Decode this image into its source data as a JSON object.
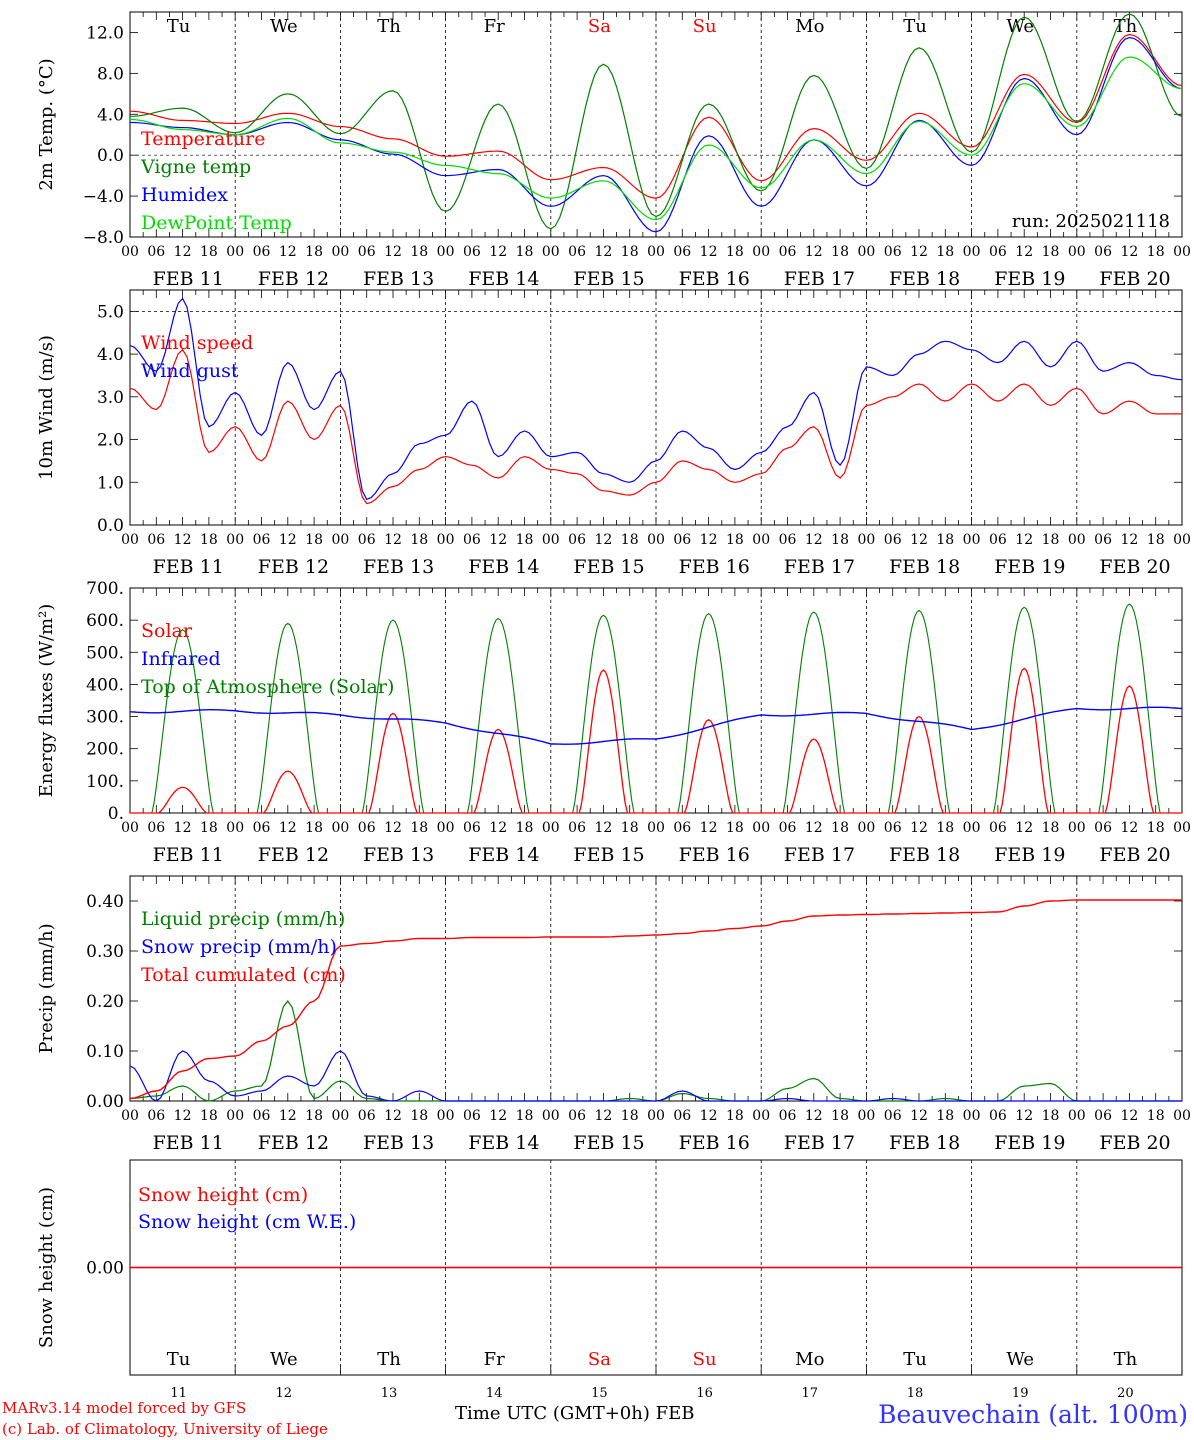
{
  "footer": {
    "model_line": "MARv3.14 model forced by GFS",
    "credit_line": "(c) Lab. of Climatology, University of Liege",
    "time_axis_label": "Time UTC (GMT+0h)",
    "month_label": "FEB",
    "station": "Beauvechain (alt. 100m)"
  },
  "run_label": "run: 2025021118",
  "days": {
    "weekday_labels": [
      "Tu",
      "We",
      "Th",
      "Fr",
      "Sa",
      "Su",
      "Mo",
      "Tu",
      "We",
      "Th"
    ],
    "weekend_flags": [
      false,
      false,
      false,
      false,
      true,
      true,
      false,
      false,
      false,
      false
    ],
    "date_labels": [
      "FEB 11",
      "FEB 12",
      "FEB 13",
      "FEB 14",
      "FEB 15",
      "FEB 16",
      "FEB 17",
      "FEB 18",
      "FEB 19",
      "FEB 20"
    ],
    "day_numbers": [
      "11",
      "12",
      "13",
      "14",
      "15",
      "16",
      "17",
      "18",
      "19",
      "20"
    ],
    "hour_labels": [
      "00",
      "06",
      "12",
      "18"
    ],
    "final_hour_label": "00"
  },
  "colors": {
    "red": "#ff0000",
    "green": "#008000",
    "blue": "#0000ff",
    "lightgreen": "#00dd00",
    "weekend": "#ff0000"
  },
  "chart_data": [
    {
      "type": "line",
      "ylabel": "2m Temp. (°C)",
      "ylim": [
        -8,
        14
      ],
      "yticks": [
        -8,
        -4,
        0,
        4,
        8,
        12
      ],
      "ytick_labels": [
        "−8.0",
        "−4.0",
        "0.0",
        "4.0",
        "8.0",
        "12.0"
      ],
      "reference_line": 0,
      "x_unit": "hours since FEB 11 00 UTC",
      "x": [
        0,
        12,
        24,
        36,
        48,
        60,
        72,
        84,
        96,
        108,
        120,
        132,
        144,
        156,
        168,
        180,
        192,
        204,
        216,
        228,
        240
      ],
      "series": [
        {
          "name": "Temperature",
          "color": "red",
          "values": [
            4.3,
            3.4,
            3.1,
            4.1,
            2.8,
            1.6,
            -0.1,
            0.4,
            -2.4,
            -1.2,
            -4.2,
            3.7,
            -2.5,
            2.6,
            -0.5,
            4.1,
            0.8,
            7.9,
            3.2,
            11.8,
            6.8
          ]
        },
        {
          "name": "Vigne temp",
          "color": "green",
          "values": [
            3.8,
            4.6,
            2.2,
            6.0,
            2.1,
            6.3,
            -5.5,
            5.0,
            -7.2,
            8.9,
            -6.0,
            5.0,
            -3.5,
            7.8,
            -1.3,
            10.5,
            0.3,
            13.5,
            3.3,
            13.8,
            3.8
          ]
        },
        {
          "name": "Humidex",
          "color": "blue",
          "values": [
            3.2,
            2.7,
            2.0,
            3.2,
            1.5,
            0.1,
            -2.0,
            -1.4,
            -5.0,
            -2.0,
            -7.5,
            1.9,
            -5.0,
            1.5,
            -3.0,
            3.4,
            -1.0,
            7.5,
            2.0,
            11.5,
            6.5
          ]
        },
        {
          "name": "DewPoint Temp",
          "color": "lightgreen",
          "values": [
            3.5,
            2.5,
            2.0,
            3.6,
            1.2,
            0.3,
            -1.0,
            -1.8,
            -4.2,
            -2.5,
            -6.3,
            1.0,
            -3.2,
            1.5,
            -1.8,
            3.3,
            0.0,
            7.0,
            2.8,
            9.6,
            6.5
          ]
        }
      ]
    },
    {
      "type": "line",
      "ylabel": "10m Wind (m/s)",
      "ylim": [
        0,
        5.5
      ],
      "yticks": [
        0,
        1,
        2,
        3,
        4,
        5
      ],
      "ytick_labels": [
        "0.0",
        "1.0",
        "2.0",
        "3.0",
        "4.0",
        "5.0"
      ],
      "reference_line": 5,
      "x_unit": "hours since FEB 11 00 UTC",
      "x": [
        0,
        6,
        12,
        18,
        24,
        30,
        36,
        42,
        48,
        54,
        60,
        66,
        72,
        78,
        84,
        90,
        96,
        102,
        108,
        114,
        120,
        126,
        132,
        138,
        144,
        150,
        156,
        162,
        168,
        174,
        180,
        186,
        192,
        198,
        204,
        210,
        216,
        222,
        228,
        234,
        240
      ],
      "series": [
        {
          "name": "Wind speed",
          "color": "red",
          "values": [
            3.2,
            2.7,
            4.1,
            1.7,
            2.3,
            1.5,
            2.9,
            2.0,
            2.8,
            0.5,
            0.9,
            1.3,
            1.6,
            1.4,
            1.1,
            1.6,
            1.3,
            1.2,
            0.8,
            0.7,
            1.0,
            1.5,
            1.3,
            1.0,
            1.2,
            1.8,
            2.3,
            1.1,
            2.8,
            3.0,
            3.3,
            2.9,
            3.3,
            2.9,
            3.3,
            2.8,
            3.2,
            2.6,
            2.9,
            2.6,
            2.6
          ]
        },
        {
          "name": "Wind gust",
          "color": "blue",
          "values": [
            4.2,
            3.6,
            5.3,
            2.3,
            3.1,
            2.1,
            3.8,
            2.7,
            3.6,
            0.6,
            1.2,
            1.9,
            2.1,
            2.9,
            1.6,
            2.2,
            1.6,
            1.7,
            1.2,
            1.0,
            1.5,
            2.2,
            1.8,
            1.3,
            1.7,
            2.3,
            3.1,
            1.4,
            3.7,
            3.5,
            4.0,
            4.3,
            4.1,
            3.8,
            4.3,
            3.7,
            4.3,
            3.6,
            3.8,
            3.5,
            3.4
          ]
        }
      ]
    },
    {
      "type": "line",
      "ylabel": "Energy fluxes (W/m²)",
      "ylim": [
        0,
        700
      ],
      "yticks": [
        0,
        100,
        200,
        300,
        400,
        500,
        600,
        700
      ],
      "ytick_labels": [
        "0.",
        "100.",
        "200.",
        "300.",
        "400.",
        "500.",
        "600.",
        "700."
      ],
      "x_unit": "hours since FEB 11 00 UTC",
      "daily_peak_hour": 12,
      "solar_daily_peaks": [
        80,
        130,
        310,
        260,
        445,
        290,
        230,
        300,
        450,
        395
      ],
      "infrared_daily_levels": [
        315,
        318,
        305,
        280,
        215,
        230,
        305,
        310,
        260,
        325
      ],
      "toa_solar_daily_peaks": [
        570,
        590,
        600,
        605,
        615,
        620,
        625,
        630,
        640,
        650
      ],
      "series": [
        {
          "name": "Solar",
          "color": "red"
        },
        {
          "name": "Infrared",
          "color": "blue"
        },
        {
          "name": "Top of Atmosphere (Solar)",
          "color": "green"
        }
      ]
    },
    {
      "type": "line",
      "ylabel": "Precip (mm/h)",
      "ylim": [
        0,
        0.45
      ],
      "yticks": [
        0,
        0.1,
        0.2,
        0.3,
        0.4
      ],
      "ytick_labels": [
        "0.00",
        "0.10",
        "0.20",
        "0.30",
        "0.40"
      ],
      "x_unit": "hours since FEB 11 00 UTC",
      "x": [
        0,
        6,
        12,
        18,
        24,
        30,
        36,
        42,
        48,
        54,
        60,
        66,
        72,
        78,
        84,
        90,
        96,
        102,
        108,
        114,
        120,
        126,
        132,
        138,
        144,
        150,
        156,
        162,
        168,
        174,
        180,
        186,
        192,
        198,
        204,
        210,
        216,
        222,
        228,
        234,
        240
      ],
      "series": [
        {
          "name": "Liquid precip (mm/h)",
          "color": "green",
          "values": [
            0.005,
            0.01,
            0.03,
            0.0,
            0.02,
            0.03,
            0.2,
            0.005,
            0.04,
            0.005,
            0.0,
            0.0,
            0.0,
            0.0,
            0.0,
            0.0,
            0.0,
            0.0,
            0.0,
            0.005,
            0.0,
            0.015,
            0.005,
            0.0,
            0.0,
            0.025,
            0.045,
            0.005,
            0.0,
            0.0,
            0.0,
            0.005,
            0.0,
            0.0,
            0.03,
            0.035,
            0.0,
            0.0,
            0.0,
            0.0,
            0.0
          ]
        },
        {
          "name": "Snow precip (mm/h)",
          "color": "blue",
          "values": [
            0.07,
            0.0,
            0.1,
            0.04,
            0.01,
            0.02,
            0.05,
            0.03,
            0.1,
            0.01,
            0.0,
            0.02,
            0.0,
            0.0,
            0.0,
            0.0,
            0.0,
            0.0,
            0.0,
            0.0,
            0.0,
            0.02,
            0.0,
            0.0,
            0.0,
            0.005,
            0.0,
            0.0,
            0.0,
            0.005,
            0.0,
            0.0,
            0.0,
            0.0,
            0.0,
            0.0,
            0.0,
            0.0,
            0.0,
            0.0,
            0.0
          ]
        },
        {
          "name": "Total cumulated (cm)",
          "color": "red",
          "values": [
            0.005,
            0.02,
            0.06,
            0.085,
            0.09,
            0.12,
            0.15,
            0.2,
            0.31,
            0.315,
            0.32,
            0.325,
            0.325,
            0.327,
            0.327,
            0.327,
            0.328,
            0.328,
            0.328,
            0.33,
            0.332,
            0.335,
            0.34,
            0.345,
            0.35,
            0.36,
            0.37,
            0.372,
            0.373,
            0.374,
            0.375,
            0.376,
            0.377,
            0.378,
            0.39,
            0.4,
            0.402,
            0.402,
            0.402,
            0.402,
            0.402
          ]
        }
      ]
    },
    {
      "type": "line",
      "ylabel": "Snow height (cm)",
      "ylim": [
        -1,
        1
      ],
      "yticks": [
        0
      ],
      "ytick_labels": [
        "0.00"
      ],
      "series": [
        {
          "name": "Snow height (cm)",
          "color": "red",
          "values": [
            0,
            0
          ]
        },
        {
          "name": "Snow height (cm W.E.)",
          "color": "blue",
          "values": [
            0,
            0
          ]
        }
      ]
    }
  ]
}
